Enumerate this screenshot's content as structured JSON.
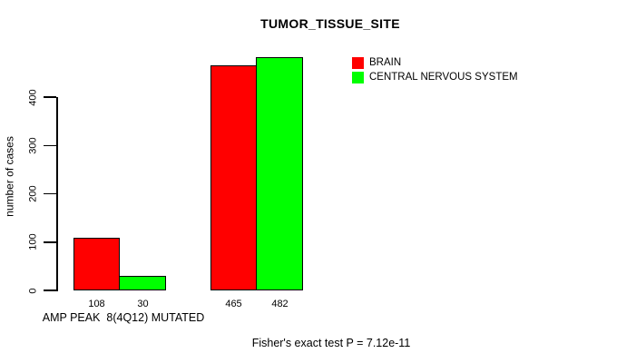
{
  "chart_data": {
    "type": "bar",
    "title": "TUMOR_TISSUE_SITE",
    "ylabel": "number of cases",
    "xlabel": "AMP PEAK  8(4Q12) MUTATED",
    "ylim": [
      0,
      400
    ],
    "yticks": [
      0,
      100,
      200,
      300,
      400
    ],
    "grid": false,
    "legend_position": "top-right",
    "categories": [
      "AMP PEAK  8(4Q12) MUTATED",
      ""
    ],
    "series": [
      {
        "name": "BRAIN",
        "color": "#ff0000",
        "values": [
          108,
          465
        ]
      },
      {
        "name": "CENTRAL NERVOUS SYSTEM",
        "color": "#00ff00",
        "values": [
          30,
          482
        ]
      }
    ],
    "bar_value_labels": [
      "108",
      "30",
      "465",
      "482"
    ],
    "annotation": "Fisher's exact test P = 7.12e-11"
  }
}
